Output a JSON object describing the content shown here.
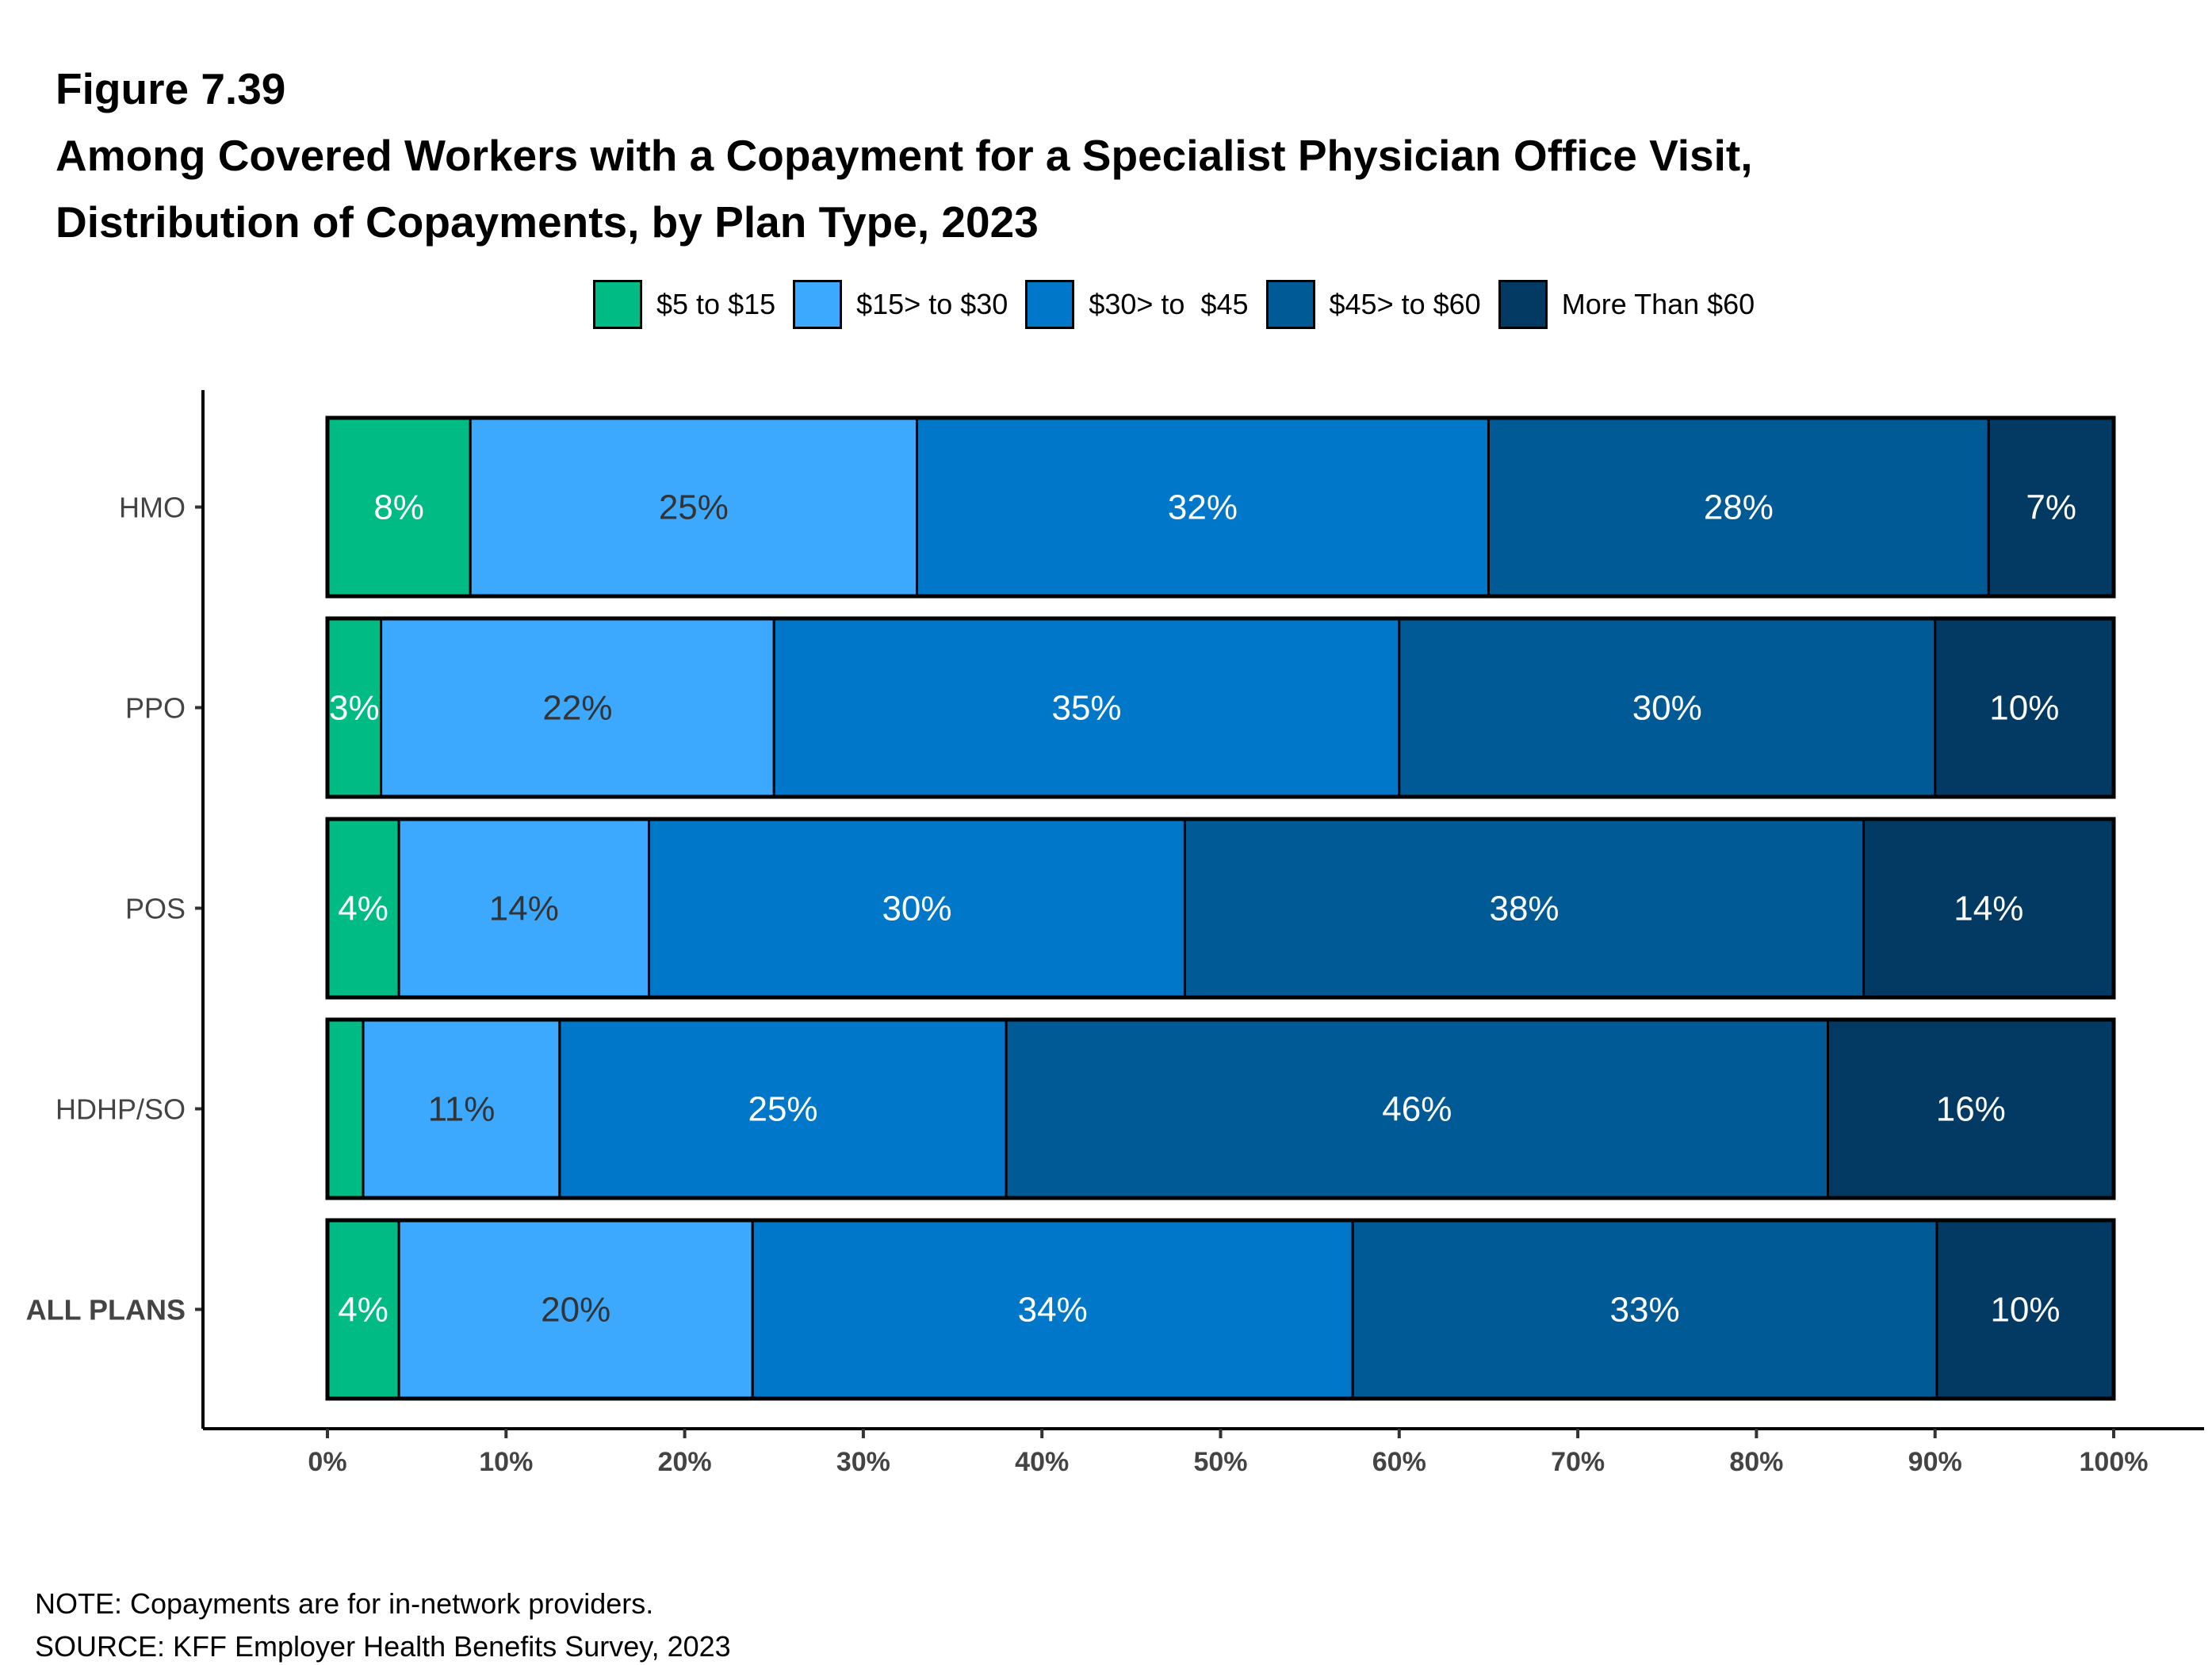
{
  "figure_label": "Figure 7.39",
  "title_line1": "Among Covered Workers with a Copayment for a Specialist Physician Office Visit,",
  "title_line2": "Distribution of Copayments, by Plan Type, 2023",
  "notes": {
    "note": "NOTE: Copayments are for in-network providers.",
    "source": "SOURCE: KFF Employer Health Benefits Survey, 2023"
  },
  "chart_data": {
    "type": "bar",
    "orientation": "horizontal",
    "stacked": true,
    "categories": [
      "HMO",
      "PPO",
      "POS",
      "HDHP/SO",
      "ALL PLANS"
    ],
    "series": [
      {
        "name": "$5 to $15",
        "color": "#00BC84",
        "label_color": "#FFFFFF",
        "values": [
          8,
          3,
          4,
          2,
          4
        ],
        "labels": [
          "8%",
          "3%",
          "4%",
          "",
          "4%"
        ]
      },
      {
        "name": "$15> to $30",
        "color": "#3DA9FE",
        "label_color": "#333333",
        "values": [
          25,
          22,
          14,
          11,
          19.8
        ],
        "labels": [
          "25%",
          "22%",
          "14%",
          "11%",
          "20%"
        ]
      },
      {
        "name": "$30> to  $45",
        "color": "#0077C8",
        "label_color": "#FFFFFF",
        "values": [
          32,
          35,
          30,
          25,
          33.6
        ],
        "labels": [
          "32%",
          "35%",
          "30%",
          "25%",
          "34%"
        ]
      },
      {
        "name": "$45> to $60",
        "color": "#005A96",
        "label_color": "#FFFFFF",
        "values": [
          28,
          30,
          38,
          46,
          32.7
        ],
        "labels": [
          "28%",
          "30%",
          "38%",
          "46%",
          "33%"
        ]
      },
      {
        "name": "More Than $60",
        "color": "#023A63",
        "label_color": "#FFFFFF",
        "values": [
          7,
          10,
          14,
          16,
          9.9
        ],
        "labels": [
          "7%",
          "10%",
          "14%",
          "16%",
          "10%"
        ]
      }
    ],
    "xlim": [
      0,
      100
    ],
    "x_ticks": [
      "0%",
      "10%",
      "20%",
      "30%",
      "40%",
      "50%",
      "60%",
      "70%",
      "80%",
      "90%",
      "100%"
    ],
    "bold_categories": [
      "ALL PLANS"
    ],
    "legend_position": "top",
    "grid": false
  }
}
